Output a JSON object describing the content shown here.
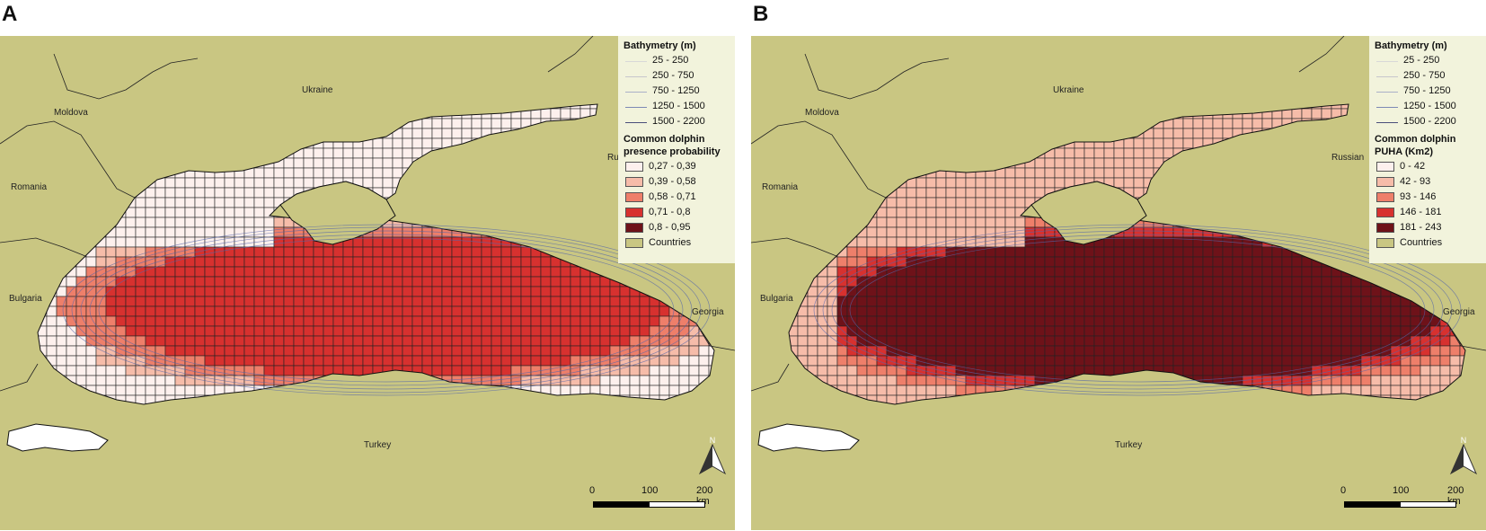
{
  "panels": [
    {
      "letter": "A",
      "legend": {
        "bathy_title": "Bathymetry (m)",
        "bathy_items": [
          "25 - 250",
          "250 - 750",
          "750 - 1250",
          "1250 - 1500",
          "1500 - 2200"
        ],
        "class_title_1": "Common dolphin",
        "class_title_2": "presence probability",
        "classes": [
          "0,27 - 0,39",
          "0,39 - 0,58",
          "0,58 - 0,71",
          "0,71 - 0,8",
          "0,8 - 0,95",
          "Countries"
        ]
      },
      "labels": {
        "ukraine": "Ukraine",
        "moldova": "Moldova",
        "romania": "Romania",
        "bulgaria": "Bulgaria",
        "turkey": "Turkey",
        "georgia": "Georgia",
        "russian": "Ru"
      },
      "scale": {
        "l0": "0",
        "l1": "100",
        "l2": "200 km"
      },
      "north": "N"
    },
    {
      "letter": "B",
      "legend": {
        "bathy_title": "Bathymetry (m)",
        "bathy_items": [
          "25 - 250",
          "250 - 750",
          "750 - 1250",
          "1250 - 1500",
          "1500 - 2200"
        ],
        "class_title_1": "Common dolphin",
        "class_title_2": "PUHA (Km2)",
        "classes": [
          "0 - 42",
          "42 - 93",
          "93 - 146",
          "146 - 181",
          "181 - 243",
          "Countries"
        ]
      },
      "labels": {
        "ukraine": "Ukraine",
        "moldova": "Moldova",
        "romania": "Romania",
        "bulgaria": "Bulgaria",
        "turkey": "Turkey",
        "georgia": "Georgia",
        "russian": "Russian"
      },
      "scale": {
        "l0": "0",
        "l1": "100",
        "l2": "200 km"
      },
      "north": "N"
    }
  ],
  "colors": {
    "land": "#c9c682",
    "sea_white": "#ffffff",
    "class_1": "#fdf0ed",
    "class_2": "#f6bca9",
    "class_3": "#ee7f6a",
    "class_4": "#d7312f",
    "class_5": "#6e1219",
    "countries": "#c9c682",
    "bathymetry": "#5566aa"
  }
}
